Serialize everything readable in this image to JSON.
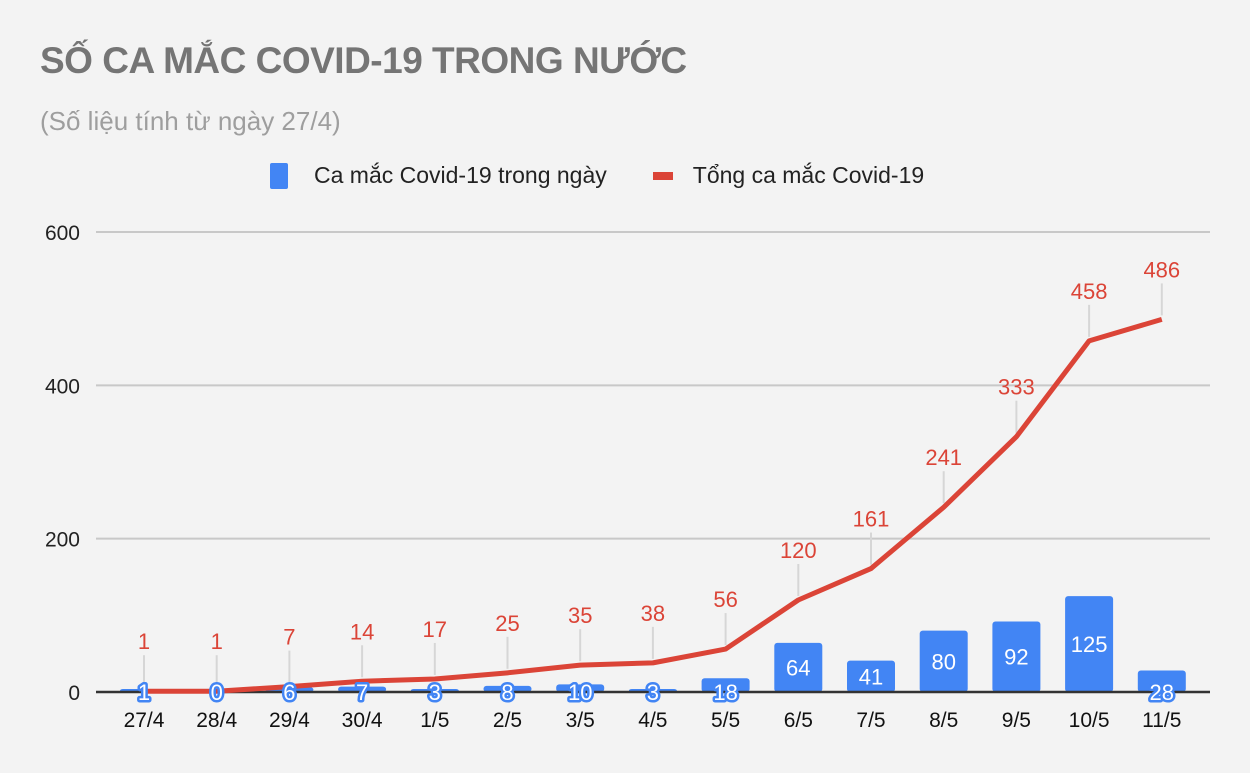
{
  "title": "SỐ CA MẮC COVID-19 TRONG NƯỚC",
  "subtitle": "(Số liệu tính từ ngày 27/4)",
  "legend": [
    {
      "label": "Ca mắc Covid-19 trong ngày",
      "color": "#4285f4",
      "kind": "bar"
    },
    {
      "label": "Tổng ca mắc Covid-19",
      "color": "#db4437",
      "kind": "line"
    }
  ],
  "chart_data": {
    "type": "bar+line",
    "title": "SỐ CA MẮC COVID-19 TRONG NƯỚC",
    "subtitle": "(Số liệu tính từ ngày 27/4)",
    "categories": [
      "27/4",
      "28/4",
      "29/4",
      "30/4",
      "1/5",
      "2/5",
      "3/5",
      "4/5",
      "5/5",
      "6/5",
      "7/5",
      "8/5",
      "9/5",
      "10/5",
      "11/5"
    ],
    "series": [
      {
        "name": "Ca mắc Covid-19 trong ngày",
        "type": "bar",
        "color": "#4285f4",
        "values": [
          1,
          0,
          6,
          7,
          3,
          8,
          10,
          3,
          18,
          64,
          41,
          80,
          92,
          125,
          28
        ]
      },
      {
        "name": "Tổng ca mắc Covid-19",
        "type": "line",
        "color": "#db4437",
        "values": [
          1,
          1,
          7,
          14,
          17,
          25,
          35,
          38,
          56,
          120,
          161,
          241,
          333,
          458,
          486
        ]
      }
    ],
    "yticks": [
      0,
      200,
      400,
      600
    ],
    "ylim": [
      0,
      600
    ],
    "xlabel": "",
    "ylabel": "",
    "grid": true,
    "legend_position": "top"
  }
}
